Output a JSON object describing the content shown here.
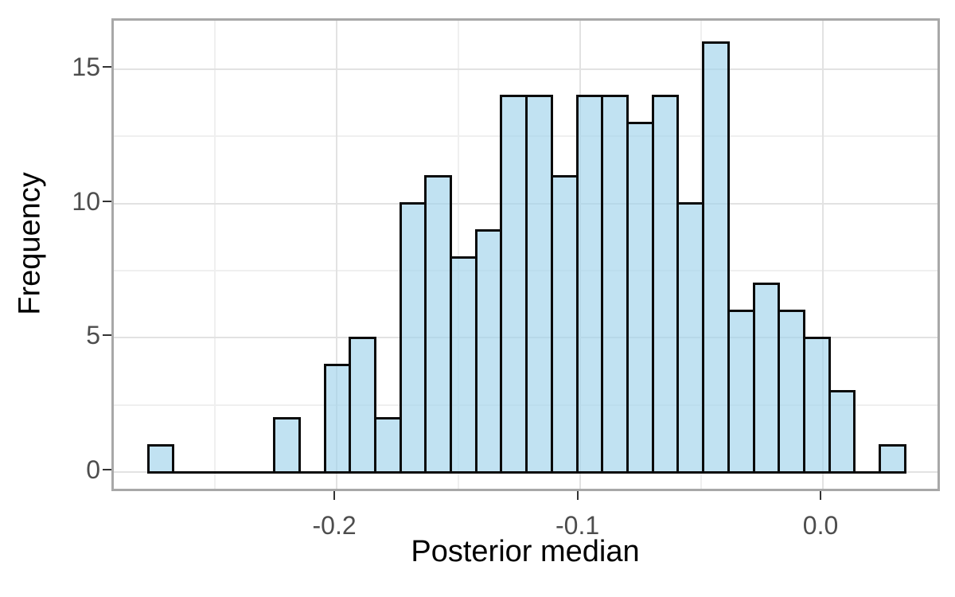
{
  "chart_data": {
    "type": "bar",
    "subtype": "histogram",
    "title": "",
    "xlabel": "Posterior median",
    "ylabel": "Frequency",
    "xlim": [
      -0.2917,
      0.0491
    ],
    "ylim": [
      -0.8,
      16.81
    ],
    "bins": {
      "start": -0.2776,
      "width": 0.01038,
      "count": 30
    },
    "counts": [
      1,
      0,
      0,
      0,
      0,
      2,
      0,
      4,
      5,
      2,
      10,
      11,
      8,
      9,
      14,
      14,
      11,
      14,
      14,
      13,
      14,
      10,
      16,
      6,
      7,
      6,
      5,
      3,
      0,
      1
    ],
    "x_ticks": {
      "values": [
        -0.2,
        -0.1,
        0.0
      ],
      "labels": [
        "-0.2",
        "-0.1",
        "0.0"
      ]
    },
    "y_ticks": {
      "values": [
        0,
        5,
        10,
        15
      ],
      "labels": [
        "0",
        "5",
        "10",
        "15"
      ]
    },
    "x_minor_gridlines": [
      -0.25,
      -0.15,
      -0.05
    ],
    "y_minor_gridlines": [
      2.5,
      7.5,
      12.5
    ],
    "grid": true,
    "legend": false,
    "colors": {
      "bar_fill": "rgba(160,211,235,0.65)",
      "bar_stroke": "#0a0a0a",
      "grid_major": "#e2e2e2",
      "grid_minor": "#efefef",
      "panel_border": "#a8a8a8",
      "tick_mark": "#333333",
      "tick_label": "#4d4d4d",
      "axis_title": "#000000",
      "background": "#ffffff"
    }
  }
}
